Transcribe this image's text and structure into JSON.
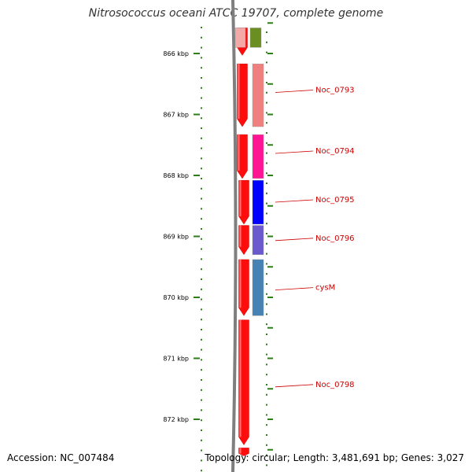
{
  "title": "Nitrosococcus oceani ATCC 19707, complete genome",
  "footer": {
    "accession": "Accession: NC_007484",
    "summary": "Topology: circular; Length: 3,481,691 bp; Genes: 3,027"
  },
  "colors": {
    "backbone": "#7f7f7f",
    "ruler": "#2e7d1a",
    "label": "#cc0000",
    "cds": "#ff0000"
  },
  "ticks": [
    {
      "label": "866 kbp",
      "kbp": 866
    },
    {
      "label": "867 kbp",
      "kbp": 867
    },
    {
      "label": "868 kbp",
      "kbp": 868
    },
    {
      "label": "869 kbp",
      "kbp": 869
    },
    {
      "label": "870 kbp",
      "kbp": 870
    },
    {
      "label": "871 kbp",
      "kbp": 871
    },
    {
      "label": "872 kbp",
      "kbp": 872
    }
  ],
  "cds_features": [
    {
      "start": 865.58,
      "end": 866.03,
      "strand": "-"
    },
    {
      "start": 866.17,
      "end": 867.2,
      "strand": "-"
    },
    {
      "start": 867.33,
      "end": 868.05,
      "strand": "-"
    },
    {
      "start": 868.08,
      "end": 868.8,
      "strand": "-"
    },
    {
      "start": 868.82,
      "end": 869.3,
      "strand": "-"
    },
    {
      "start": 869.38,
      "end": 870.3,
      "strand": "-"
    },
    {
      "start": 870.37,
      "end": 872.42,
      "strand": "-"
    },
    {
      "start": 872.47,
      "end": 872.6,
      "strand": "-"
    }
  ],
  "genes": [
    {
      "label": "",
      "start": 865.58,
      "end": 865.9,
      "color": "#f4a9a9"
    },
    {
      "label": "",
      "start": 865.58,
      "end": 865.9,
      "color": "#6b8e23"
    },
    {
      "label": "Noc_0793",
      "start": 866.17,
      "end": 867.2,
      "color": "#f08080",
      "label_kbp": 866.6
    },
    {
      "label": "Noc_0794",
      "start": 867.33,
      "end": 868.05,
      "color": "#ff1493",
      "label_kbp": 867.6
    },
    {
      "label": "Noc_0795",
      "start": 868.08,
      "end": 868.8,
      "color": "#0000ff",
      "label_kbp": 868.4
    },
    {
      "label": "Noc_0796",
      "start": 868.82,
      "end": 869.3,
      "color": "#6a5acd",
      "label_kbp": 869.03
    },
    {
      "label": "cysM",
      "start": 869.38,
      "end": 870.3,
      "color": "#4682b4",
      "label_kbp": 869.84
    },
    {
      "label": "Noc_0798",
      "start": 0,
      "end": 0,
      "color": "",
      "label_kbp": 871.43
    }
  ]
}
